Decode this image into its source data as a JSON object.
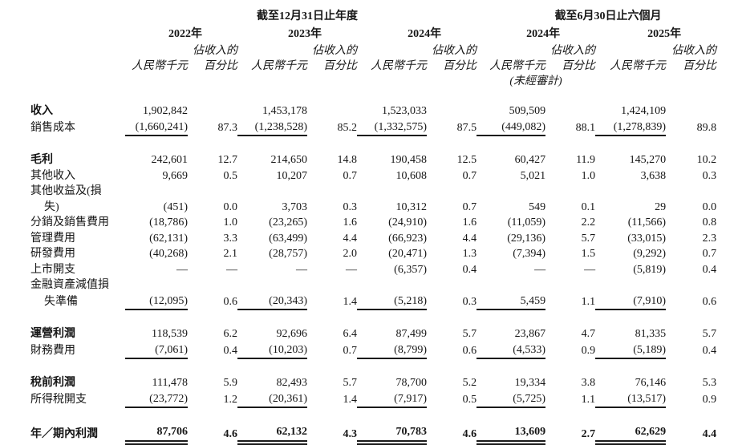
{
  "document": {
    "header": {
      "annual_group_title": "截至12月31日止年度",
      "interim_group_title": "截至6月30日止六個月",
      "columns": [
        {
          "year": "2022年"
        },
        {
          "year": "2023年"
        },
        {
          "year": "2024年"
        },
        {
          "year": "2024年"
        },
        {
          "year": "2025年"
        }
      ],
      "pct_label_line1": "佔收入的",
      "amount_unit_label": "人民幣千元",
      "pct_label_line2": "百分比",
      "unaudited_label": "(未經審計)"
    },
    "rows": [
      {
        "label": "收入",
        "bold": true,
        "indent": false,
        "rule": "none",
        "spacer_after": false,
        "values_bold": false,
        "values": [
          "1,902,842",
          "",
          "1,453,178",
          "",
          "1,523,033",
          "",
          "509,509",
          "",
          "1,424,109",
          ""
        ]
      },
      {
        "label": "銷售成本",
        "bold": false,
        "indent": false,
        "rule": "single",
        "spacer_after": true,
        "values_bold": false,
        "values": [
          "(1,660,241)",
          "87.3",
          "(1,238,528)",
          "85.2",
          "(1,332,575)",
          "87.5",
          "(449,082)",
          "88.1",
          "(1,278,839)",
          "89.8"
        ]
      },
      {
        "label": "毛利",
        "bold": true,
        "indent": false,
        "rule": "none",
        "spacer_after": false,
        "values_bold": false,
        "values": [
          "242,601",
          "12.7",
          "214,650",
          "14.8",
          "190,458",
          "12.5",
          "60,427",
          "11.9",
          "145,270",
          "10.2"
        ]
      },
      {
        "label": "其他收入",
        "bold": false,
        "indent": false,
        "rule": "none",
        "spacer_after": false,
        "values_bold": false,
        "values": [
          "9,669",
          "0.5",
          "10,207",
          "0.7",
          "10,608",
          "0.7",
          "5,021",
          "1.0",
          "3,638",
          "0.3"
        ]
      },
      {
        "label": "其他收益及(損",
        "bold": false,
        "indent": false,
        "rule": "none",
        "spacer_after": false,
        "values_bold": false,
        "values": [
          "",
          "",
          "",
          "",
          "",
          "",
          "",
          "",
          "",
          ""
        ]
      },
      {
        "label": "失)",
        "bold": false,
        "indent": true,
        "rule": "none",
        "spacer_after": false,
        "values_bold": false,
        "values": [
          "(451)",
          "0.0",
          "3,703",
          "0.3",
          "10,312",
          "0.7",
          "549",
          "0.1",
          "29",
          "0.0"
        ]
      },
      {
        "label": "分銷及銷售費用",
        "bold": false,
        "indent": false,
        "rule": "none",
        "spacer_after": false,
        "values_bold": false,
        "values": [
          "(18,786)",
          "1.0",
          "(23,265)",
          "1.6",
          "(24,910)",
          "1.6",
          "(11,059)",
          "2.2",
          "(11,566)",
          "0.8"
        ]
      },
      {
        "label": "管理費用",
        "bold": false,
        "indent": false,
        "rule": "none",
        "spacer_after": false,
        "values_bold": false,
        "values": [
          "(62,131)",
          "3.3",
          "(63,499)",
          "4.4",
          "(66,923)",
          "4.4",
          "(29,136)",
          "5.7",
          "(33,015)",
          "2.3"
        ]
      },
      {
        "label": "研發費用",
        "bold": false,
        "indent": false,
        "rule": "none",
        "spacer_after": false,
        "values_bold": false,
        "values": [
          "(40,268)",
          "2.1",
          "(28,757)",
          "2.0",
          "(20,471)",
          "1.3",
          "(7,394)",
          "1.5",
          "(9,292)",
          "0.7"
        ]
      },
      {
        "label": "上市開支",
        "bold": false,
        "indent": false,
        "rule": "none",
        "spacer_after": false,
        "values_bold": false,
        "values": [
          "—",
          "—",
          "—",
          "—",
          "(6,357)",
          "0.4",
          "—",
          "—",
          "(5,819)",
          "0.4"
        ]
      },
      {
        "label": "金融資產減值損",
        "bold": false,
        "indent": false,
        "rule": "none",
        "spacer_after": false,
        "values_bold": false,
        "values": [
          "",
          "",
          "",
          "",
          "",
          "",
          "",
          "",
          "",
          ""
        ]
      },
      {
        "label": "失準備",
        "bold": false,
        "indent": true,
        "rule": "single",
        "spacer_after": true,
        "values_bold": false,
        "values": [
          "(12,095)",
          "0.6",
          "(20,343)",
          "1.4",
          "(5,218)",
          "0.3",
          "5,459",
          "1.1",
          "(7,910)",
          "0.6"
        ]
      },
      {
        "label": "運營利潤",
        "bold": true,
        "indent": false,
        "rule": "none",
        "spacer_after": false,
        "values_bold": false,
        "values": [
          "118,539",
          "6.2",
          "92,696",
          "6.4",
          "87,499",
          "5.7",
          "23,867",
          "4.7",
          "81,335",
          "5.7"
        ]
      },
      {
        "label": "財務費用",
        "bold": false,
        "indent": false,
        "rule": "single",
        "spacer_after": true,
        "values_bold": false,
        "values": [
          "(7,061)",
          "0.4",
          "(10,203)",
          "0.7",
          "(8,799)",
          "0.6",
          "(4,533)",
          "0.9",
          "(5,189)",
          "0.4"
        ]
      },
      {
        "label": "稅前利潤",
        "bold": true,
        "indent": false,
        "rule": "none",
        "spacer_after": false,
        "values_bold": false,
        "values": [
          "111,478",
          "5.9",
          "82,493",
          "5.7",
          "78,700",
          "5.2",
          "19,334",
          "3.8",
          "76,146",
          "5.3"
        ]
      },
      {
        "label": "所得稅開支",
        "bold": false,
        "indent": false,
        "rule": "single",
        "spacer_after": true,
        "values_bold": false,
        "values": [
          "(23,772)",
          "1.2",
          "(20,361)",
          "1.4",
          "(7,917)",
          "0.5",
          "(5,725)",
          "1.1",
          "(13,517)",
          "0.9"
        ]
      },
      {
        "label": "年／期內利潤",
        "bold": true,
        "indent": false,
        "rule": "double",
        "spacer_after": false,
        "values_bold": true,
        "values": [
          "87,706",
          "4.6",
          "62,132",
          "4.3",
          "70,783",
          "4.6",
          "13,609",
          "2.7",
          "62,629",
          "4.4"
        ]
      }
    ]
  }
}
